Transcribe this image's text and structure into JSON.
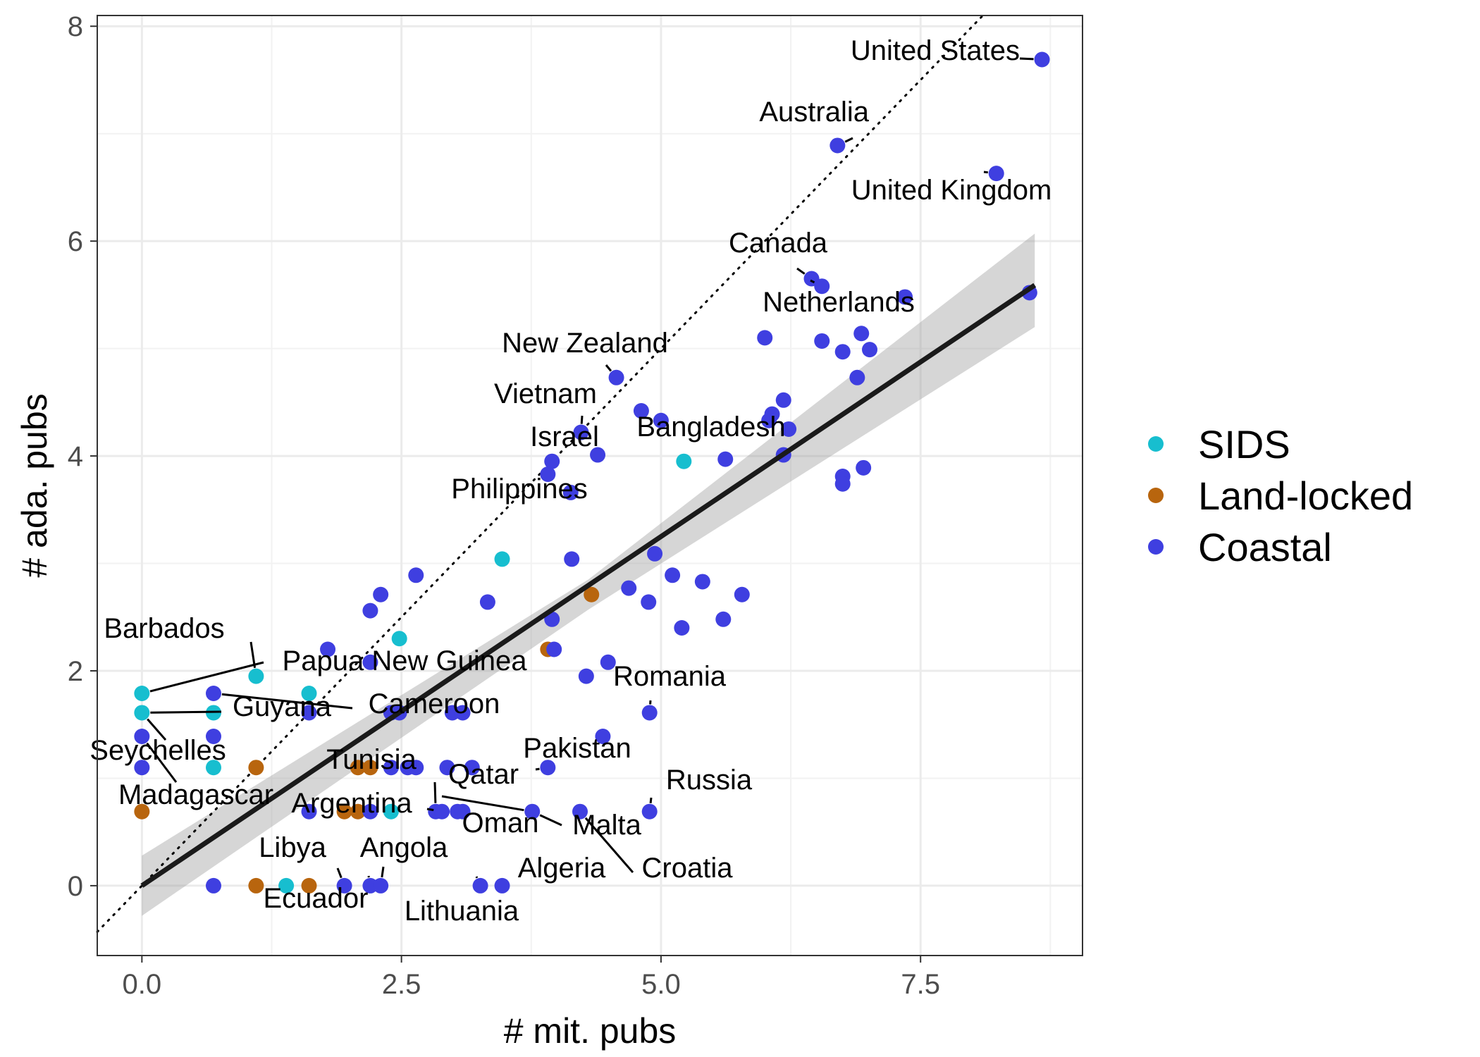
{
  "chart_data": {
    "type": "scatter",
    "title": "",
    "xlabel": "# mit. pubs",
    "ylabel": "# ada. pubs",
    "xlim": [
      -0.43,
      9.06
    ],
    "ylim": [
      -0.65,
      8.1
    ],
    "x_ticks": [
      0.0,
      2.5,
      5.0,
      7.5
    ],
    "x_tick_labels": [
      "0.0",
      "2.5",
      "5.0",
      "7.5"
    ],
    "y_ticks": [
      0,
      2,
      4,
      6,
      8
    ],
    "y_tick_labels": [
      "0",
      "2",
      "4",
      "6",
      "8"
    ],
    "grid": true,
    "legend_position": "right",
    "series": [
      {
        "name": "SIDS",
        "color": "#17becf",
        "points": [
          [
            0,
            1.79
          ],
          [
            0,
            1.61
          ],
          [
            0.69,
            1.61
          ],
          [
            0.69,
            1.1
          ],
          [
            1.1,
            1.95
          ],
          [
            1.39,
            0
          ],
          [
            1.61,
            1.79
          ],
          [
            2.4,
            0.69
          ],
          [
            2.48,
            2.3
          ],
          [
            3.47,
            3.04
          ],
          [
            5.22,
            3.95
          ]
        ]
      },
      {
        "name": "Land-locked",
        "color": "#b8650e",
        "points": [
          [
            0,
            0.69
          ],
          [
            1.1,
            0
          ],
          [
            1.1,
            1.1
          ],
          [
            1.61,
            0
          ],
          [
            1.95,
            0.69
          ],
          [
            2.08,
            0.69
          ],
          [
            2.08,
            1.1
          ],
          [
            2.2,
            1.1
          ],
          [
            3.91,
            2.2
          ],
          [
            4.33,
            2.71
          ]
        ]
      },
      {
        "name": "Coastal",
        "color": "#3f3fe0",
        "points": [
          [
            0,
            1.39
          ],
          [
            0,
            1.1
          ],
          [
            0.69,
            1.39
          ],
          [
            0.69,
            1.79
          ],
          [
            0.69,
            0
          ],
          [
            1.61,
            1.61
          ],
          [
            1.61,
            0.69
          ],
          [
            1.79,
            2.2
          ],
          [
            1.95,
            0
          ],
          [
            2.2,
            2.08
          ],
          [
            2.2,
            2.56
          ],
          [
            2.2,
            0.69
          ],
          [
            2.2,
            0
          ],
          [
            2.3,
            2.71
          ],
          [
            2.3,
            0
          ],
          [
            2.4,
            1.1
          ],
          [
            2.4,
            1.61
          ],
          [
            2.48,
            1.61
          ],
          [
            2.56,
            1.1
          ],
          [
            2.64,
            1.1
          ],
          [
            2.64,
            2.89
          ],
          [
            2.83,
            0.69
          ],
          [
            2.89,
            0.69
          ],
          [
            2.94,
            1.1
          ],
          [
            2.99,
            1.61
          ],
          [
            3.04,
            0.69
          ],
          [
            3.09,
            1.61
          ],
          [
            3.09,
            0.69
          ],
          [
            3.18,
            1.1
          ],
          [
            3.26,
            0
          ],
          [
            3.33,
            2.64
          ],
          [
            3.47,
            0
          ],
          [
            3.76,
            0.69
          ],
          [
            3.91,
            1.1
          ],
          [
            3.91,
            3.83
          ],
          [
            3.95,
            2.48
          ],
          [
            3.95,
            3.95
          ],
          [
            3.97,
            2.2
          ],
          [
            4.13,
            3.66
          ],
          [
            4.14,
            3.04
          ],
          [
            4.22,
            0.69
          ],
          [
            4.23,
            4.22
          ],
          [
            4.28,
            1.95
          ],
          [
            4.39,
            4.01
          ],
          [
            4.44,
            1.39
          ],
          [
            4.49,
            2.08
          ],
          [
            4.57,
            4.73
          ],
          [
            4.69,
            2.77
          ],
          [
            4.81,
            4.42
          ],
          [
            4.88,
            2.64
          ],
          [
            4.89,
            1.61
          ],
          [
            4.89,
            0.69
          ],
          [
            4.94,
            3.09
          ],
          [
            5.0,
            4.33
          ],
          [
            5.11,
            2.89
          ],
          [
            5.2,
            2.4
          ],
          [
            5.4,
            2.83
          ],
          [
            5.6,
            2.48
          ],
          [
            5.62,
            3.97
          ],
          [
            5.78,
            2.71
          ],
          [
            6.0,
            5.1
          ],
          [
            6.04,
            4.33
          ],
          [
            6.07,
            4.39
          ],
          [
            6.18,
            4.01
          ],
          [
            6.18,
            4.52
          ],
          [
            6.23,
            4.25
          ],
          [
            6.45,
            5.65
          ],
          [
            6.55,
            5.58
          ],
          [
            6.55,
            5.07
          ],
          [
            6.7,
            6.89
          ],
          [
            6.75,
            3.81
          ],
          [
            6.75,
            3.74
          ],
          [
            6.75,
            4.97
          ],
          [
            6.89,
            4.73
          ],
          [
            6.93,
            5.14
          ],
          [
            6.95,
            3.89
          ],
          [
            7.01,
            4.99
          ],
          [
            7.35,
            5.48
          ],
          [
            8.23,
            6.63
          ],
          [
            8.55,
            5.52
          ],
          [
            8.67,
            7.69
          ]
        ]
      }
    ],
    "reference_line": {
      "slope": 1,
      "intercept": 0,
      "style": "dotted"
    },
    "fit_line": {
      "intercept": 0.0,
      "slope": 0.65,
      "x_range": [
        0,
        8.6
      ],
      "ci_lower_at_0": -0.28,
      "ci_upper_at_0": 0.28,
      "ci_lower_at_end": 5.2,
      "ci_upper_at_end": 6.07,
      "ci_lower_at_mid": 2.57,
      "ci_upper_at_mid": 2.85
    },
    "annotations": [
      {
        "label": "United States",
        "point": [
          8.67,
          7.69
        ]
      },
      {
        "label": "Australia",
        "point": [
          6.7,
          6.89
        ]
      },
      {
        "label": "United Kingdom",
        "point": [
          8.23,
          6.63
        ]
      },
      {
        "label": "Canada",
        "point": [
          6.45,
          5.65
        ]
      },
      {
        "label": "Netherlands",
        "point": [
          6.55,
          5.58
        ]
      },
      {
        "label": "New Zealand",
        "point": [
          4.57,
          4.73
        ]
      },
      {
        "label": "Vietnam",
        "point": [
          4.23,
          4.22
        ]
      },
      {
        "label": "Bangladesh",
        "point": [
          4.81,
          4.42
        ]
      },
      {
        "label": "Israel",
        "point": [
          3.95,
          3.95
        ]
      },
      {
        "label": "Philippines",
        "point": [
          3.91,
          3.83
        ]
      },
      {
        "label": "Barbados",
        "point": [
          1.1,
          1.95
        ]
      },
      {
        "label": "Papua New Guinea",
        "point": [
          0,
          1.79
        ]
      },
      {
        "label": "Cameroon",
        "point": [
          0.69,
          1.79
        ]
      },
      {
        "label": "Guyana",
        "point": [
          0,
          1.61
        ]
      },
      {
        "label": "Romania",
        "point": [
          4.89,
          1.61
        ]
      },
      {
        "label": "Seychelles",
        "point": [
          0,
          1.61
        ]
      },
      {
        "label": "Madagascar",
        "point": [
          0,
          1.39
        ]
      },
      {
        "label": "Pakistan",
        "point": [
          3.91,
          1.1
        ]
      },
      {
        "label": "Tunisia",
        "point": [
          2.83,
          0.69
        ]
      },
      {
        "label": "Qatar",
        "point": [
          3.76,
          0.69
        ]
      },
      {
        "label": "Argentina",
        "point": [
          2.89,
          0.69
        ]
      },
      {
        "label": "Russia",
        "point": [
          4.89,
          0.69
        ]
      },
      {
        "label": "Oman",
        "point": [
          3.04,
          0.69
        ]
      },
      {
        "label": "Malta",
        "point": [
          3.76,
          0.69
        ]
      },
      {
        "label": "Libya",
        "point": [
          1.95,
          0
        ]
      },
      {
        "label": "Angola",
        "point": [
          2.3,
          0
        ]
      },
      {
        "label": "Algeria",
        "point": [
          3.47,
          0
        ]
      },
      {
        "label": "Croatia",
        "point": [
          4.22,
          0.69
        ]
      },
      {
        "label": "Ecuador",
        "point": [
          2.2,
          0
        ]
      },
      {
        "label": "Lithuania",
        "point": [
          3.26,
          0
        ]
      }
    ]
  }
}
